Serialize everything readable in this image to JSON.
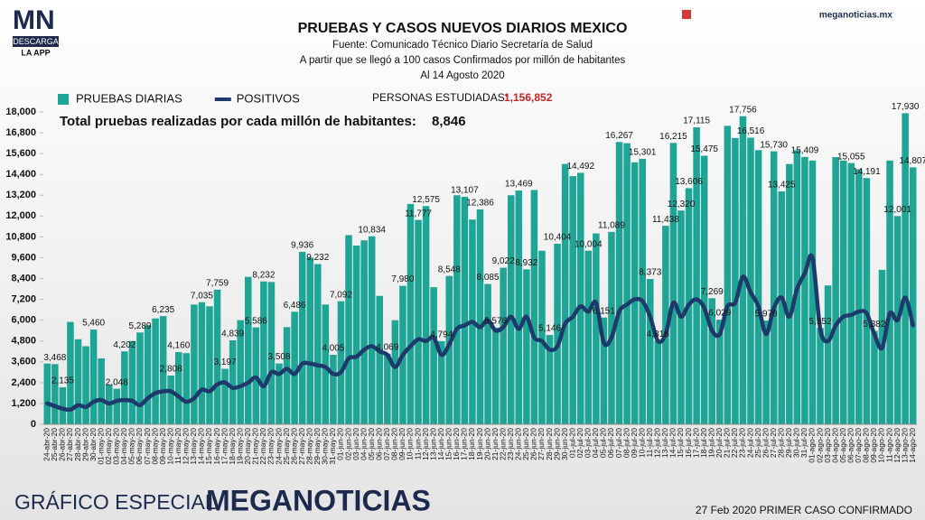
{
  "header": {
    "logo": "MN",
    "logo_button": "DESCARGA",
    "logo_caption": "LA APP",
    "site": "meganoticias.mx"
  },
  "chart_data": {
    "type": "bar",
    "title": "PRUEBAS Y CASOS NUEVOS DIARIOS MEXICO",
    "subtitle": [
      "Fuente: Comunicado Técnico Diario Secretaría de Salud",
      "A partir que se llegó a 100 casos Confirmados por millón de habitantes",
      "Al 14 Agosto 2020"
    ],
    "studied_label": "PERSONAS ESTUDIADAS:",
    "studied_value": "1,156,852",
    "per_million_label": "Total pruebas realizadas por cada millón de habitantes:",
    "per_million_value": "8,846",
    "categories": [
      "24-abr-20",
      "25-abr-20",
      "26-abr-20",
      "27-abr-20",
      "28-abr-20",
      "29-abr-20",
      "30-abr-20",
      "01-may-20",
      "02-may-20",
      "03-may-20",
      "04-may-20",
      "05-may-20",
      "06-may-20",
      "07-may-20",
      "08-may-20",
      "09-may-20",
      "10-may-20",
      "11-may-20",
      "12-may-20",
      "13-may-20",
      "14-may-20",
      "15-may-20",
      "16-may-20",
      "17-may-20",
      "18-may-20",
      "19-may-20",
      "20-may-20",
      "21-may-20",
      "22-may-20",
      "23-may-20",
      "24-may-20",
      "25-may-20",
      "26-may-20",
      "27-may-20",
      "28-may-20",
      "29-may-20",
      "30-may-20",
      "31-may-20",
      "01-jun-20",
      "02-jun-20",
      "03-jun-20",
      "04-jun-20",
      "05-jun-20",
      "06-jun-20",
      "07-jun-20",
      "08-jun-20",
      "09-jun-20",
      "10-jun-20",
      "11-jun-20",
      "12-jun-20",
      "13-jun-20",
      "14-jun-20",
      "15-jun-20",
      "16-jun-20",
      "17-jun-20",
      "18-jun-20",
      "19-jun-20",
      "20-jun-20",
      "21-jun-20",
      "22-jun-20",
      "23-jun-20",
      "24-jun-20",
      "25-jun-20",
      "26-jun-20",
      "27-jun-20",
      "28-jun-20",
      "29-jun-20",
      "30-jun-20",
      "01-jul-20",
      "02-jul-20",
      "03-jul-20",
      "04-jul-20",
      "05-jul-20",
      "06-jul-20",
      "07-jul-20",
      "08-jul-20",
      "09-jul-20",
      "10-jul-20",
      "11-jul-20",
      "12-jul-20",
      "13-jul-20",
      "14-jul-20",
      "15-jul-20",
      "16-jul-20",
      "17-jul-20",
      "18-jul-20",
      "19-jul-20",
      "20-jul-20",
      "21-jul-20",
      "22-jul-20",
      "23-jul-20",
      "24-jul-20",
      "25-jul-20",
      "26-jul-20",
      "27-jul-20",
      "28-jul-20",
      "29-jul-20",
      "30-jul-20",
      "31-jul-20",
      "01-ago-20",
      "02-ago-20",
      "03-ago-20",
      "04-ago-20",
      "05-ago-20",
      "06-ago-20",
      "07-ago-20",
      "08-ago-20",
      "09-ago-20",
      "10-ago-20",
      "11-ago-20",
      "12-ago-20",
      "13-ago-20",
      "14-ago-20"
    ],
    "series": [
      {
        "name": "PRUEBAS DIARIAS",
        "type": "bar",
        "color": "#1fa595",
        "values": [
          3500,
          3468,
          2135,
          5900,
          4900,
          4500,
          5460,
          3800,
          2300,
          2048,
          4202,
          4800,
          5289,
          5700,
          6100,
          6235,
          2808,
          4160,
          4100,
          6900,
          7035,
          6800,
          7759,
          3197,
          4839,
          6000,
          8500,
          5586,
          8232,
          8200,
          3508,
          5600,
          6486,
          9936,
          9600,
          9232,
          6900,
          4005,
          7092,
          10900,
          10300,
          10600,
          10834,
          7400,
          4069,
          6000,
          7980,
          12700,
          11777,
          12575,
          7900,
          4794,
          8548,
          13200,
          13107,
          11800,
          12386,
          8085,
          5576,
          9022,
          13200,
          13469,
          8932,
          13500,
          10000,
          5146,
          10404,
          15000,
          14300,
          14492,
          10004,
          11000,
          6151,
          11089,
          16267,
          16200,
          15100,
          15301,
          8373,
          4816,
          11438,
          16215,
          12320,
          13606,
          17115,
          15475,
          7269,
          6029,
          17200,
          16500,
          17756,
          16516,
          15800,
          5978,
          15730,
          13425,
          15000,
          15800,
          15409,
          15200,
          5552,
          8000,
          15400,
          15200,
          15055,
          14700,
          14191,
          5382,
          8900,
          15200,
          12001,
          17930,
          14807
        ],
        "value_labels": [
          null,
          "3,468",
          "2,135",
          null,
          null,
          null,
          "5,460",
          null,
          null,
          "2,048",
          "4,202",
          null,
          "5,289",
          null,
          null,
          "6,235",
          "2,808",
          "4,160",
          null,
          null,
          "7,035",
          null,
          "7,759",
          "3,197",
          "4,839",
          null,
          null,
          "5,586",
          "8,232",
          null,
          "3,508",
          null,
          "6,486",
          "9,936",
          null,
          "9,232",
          null,
          "4,005",
          "7,092",
          null,
          null,
          null,
          "10,834",
          null,
          "4,069",
          null,
          "7,980",
          null,
          "11,777",
          "12,575",
          null,
          "4,794",
          "8,548",
          null,
          "13,107",
          null,
          "12,386",
          "8,085",
          "5,576",
          "9,022",
          null,
          "13,469",
          "8,932",
          null,
          null,
          "5,146",
          "10,404",
          null,
          null,
          "14,492",
          "10,004",
          null,
          "6,151",
          "11,089",
          "16,267",
          null,
          null,
          "15,301",
          "8,373",
          "4,816",
          "11,438",
          "16,215",
          "12,320",
          "13,606",
          "17,115",
          "15,475",
          "7,269",
          "6,029",
          null,
          null,
          "17,756",
          "16,516",
          null,
          "5,978",
          "15,730",
          "13,425",
          null,
          null,
          "15,409",
          null,
          "5,552",
          null,
          null,
          null,
          "15,055",
          null,
          "14,191",
          "5,382",
          null,
          null,
          "12,001",
          "17,930",
          "14,807"
        ]
      },
      {
        "name": "POSITIVOS",
        "type": "line",
        "color": "#1d3a6b",
        "values": [
          1200,
          1050,
          900,
          850,
          1100,
          1000,
          1300,
          1400,
          1200,
          1350,
          1400,
          1350,
          1100,
          1500,
          1800,
          1900,
          1900,
          1600,
          1300,
          1500,
          2000,
          1900,
          2300,
          2400,
          2100,
          2200,
          2400,
          2700,
          2200,
          3000,
          2900,
          3200,
          2900,
          3500,
          3500,
          3400,
          3300,
          2900,
          3000,
          3800,
          3900,
          4300,
          4500,
          4200,
          4000,
          3300,
          4000,
          4500,
          4900,
          4800,
          5000,
          4000,
          4600,
          5500,
          5700,
          5900,
          5600,
          6000,
          5400,
          5600,
          6200,
          5500,
          6200,
          5000,
          4800,
          4300,
          4500,
          5800,
          6200,
          6800,
          6500,
          7000,
          4700,
          5000,
          6500,
          6900,
          7200,
          7100,
          6200,
          4800,
          5200,
          7000,
          6200,
          6900,
          7200,
          6700,
          5400,
          5200,
          6800,
          7000,
          8500,
          7600,
          6800,
          5200,
          6700,
          7300,
          6200,
          7800,
          8700,
          9600,
          5500,
          4800,
          5700,
          6200,
          6300,
          6500,
          6400,
          5200,
          4400,
          6400,
          6000,
          7300,
          5700
        ]
      }
    ],
    "ylim": [
      0,
      18000
    ],
    "yticks": [
      0,
      {
        "value": 1200,
        "label": "1,200"
      },
      {
        "value": 2400,
        "label": "2,400"
      },
      {
        "value": 3600,
        "label": "3,600"
      },
      {
        "value": 4800,
        "label": "4,800"
      },
      {
        "value": 6000,
        "label": "6,000"
      },
      {
        "value": 7200,
        "label": "7,200"
      },
      {
        "value": 8400,
        "label": "8,400"
      },
      {
        "value": 9600,
        "label": "9,600"
      },
      {
        "value": 10800,
        "label": "10,800"
      },
      {
        "value": 12000,
        "label": "12,000"
      },
      {
        "value": 13200,
        "label": "13,200"
      },
      {
        "value": 14400,
        "label": "14,400"
      },
      {
        "value": 15600,
        "label": "15,600"
      },
      {
        "value": 16800,
        "label": "16,800"
      },
      {
        "value": 18000,
        "label": "18,000"
      }
    ],
    "grid": false,
    "legend": "top-left"
  },
  "footer": {
    "left": "GRÁFICO ESPECIAL",
    "brand": "MEGANOTICIAS",
    "note": "27 Feb 2020 PRIMER CASO CONFIRMADO"
  }
}
